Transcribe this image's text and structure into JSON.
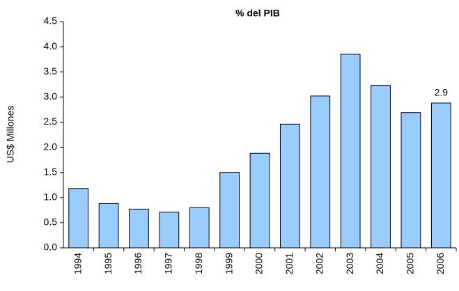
{
  "chart_data": {
    "type": "bar",
    "title": "% del PIB",
    "y_label": "US$ Millones",
    "categories": [
      "1994",
      "1995",
      "1996",
      "1997",
      "1998",
      "1999",
      "2000",
      "2001",
      "2002",
      "2003",
      "2004",
      "2005",
      "2006"
    ],
    "values": [
      1.18,
      0.88,
      0.77,
      0.71,
      0.8,
      1.5,
      1.88,
      2.46,
      3.02,
      3.85,
      3.23,
      2.69,
      2.88
    ],
    "value_labels": [
      null,
      null,
      null,
      null,
      null,
      null,
      null,
      null,
      null,
      null,
      null,
      null,
      "2.9"
    ],
    "color": "#99ccff",
    "ylim": [
      0,
      4.5
    ],
    "yticks": [
      {
        "value": 0,
        "label": "0.0"
      },
      0.5,
      {
        "value": 1,
        "label": "1.0"
      },
      1.5,
      {
        "value": 2,
        "label": "2.0"
      },
      2.5,
      {
        "value": 3,
        "label": "3.0"
      },
      3.5,
      {
        "value": 4,
        "label": "4.0"
      },
      4.5
    ],
    "grid": false
  }
}
